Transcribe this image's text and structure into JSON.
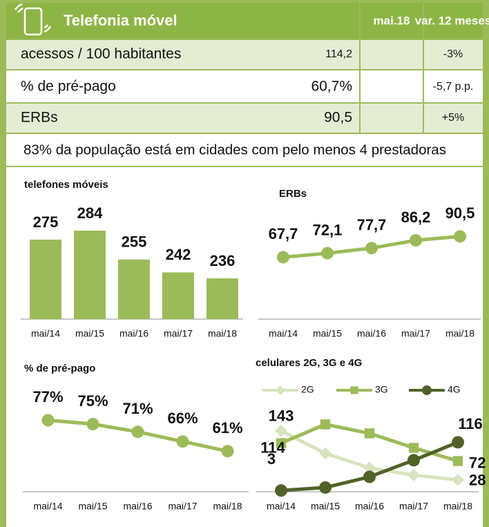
{
  "table": {
    "headers": [
      "Telefonia móvel",
      "mai.18",
      "var. 12 meses"
    ],
    "rows": [
      [
        "acessos / 100 habitantes",
        "114,2",
        "-3%"
      ],
      [
        "% de pré-pago",
        "60,7%",
        "-5,7 p.p."
      ],
      [
        "ERBs",
        "90,5",
        "+5%"
      ]
    ],
    "note": "83% da população está em cidades com pelo menos 4 prestadoras"
  },
  "chart_data": [
    {
      "type": "bar",
      "title": "telefones móveis",
      "categories": [
        "mai/14",
        "mai/15",
        "mai/16",
        "mai/17",
        "mai/18"
      ],
      "values": [
        275,
        284,
        255,
        242,
        236
      ],
      "color": "#9bbb59",
      "ylim": [
        195,
        300
      ]
    },
    {
      "type": "line",
      "title": "ERBs",
      "categories": [
        "mai/14",
        "mai/15",
        "mai/16",
        "mai/17",
        "mai/18"
      ],
      "values": [
        67.7,
        72.1,
        77.7,
        86.2,
        90.5
      ],
      "value_labels": [
        "67,7",
        "72,1",
        "77,7",
        "86,2",
        "90,5"
      ],
      "color": "#9bbb59",
      "ylim": [
        0,
        130
      ]
    },
    {
      "type": "line",
      "title": "% de pré-pago",
      "categories": [
        "mai/14",
        "mai/15",
        "mai/16",
        "mai/17",
        "mai/18"
      ],
      "values": [
        77,
        75,
        71,
        66,
        61
      ],
      "value_labels": [
        "77%",
        "75%",
        "71%",
        "66%",
        "61%"
      ],
      "color": "#9bbb59",
      "ylim": [
        40,
        90
      ]
    },
    {
      "type": "multiline",
      "title": "celulares 2G, 3G e 4G",
      "categories": [
        "mai/14",
        "mai/15",
        "mai/16",
        "mai/17",
        "mai/18"
      ],
      "series": [
        {
          "name": "2G",
          "color": "#d7e4bd",
          "values": [
            143,
            90,
            56,
            39,
            28
          ]
        },
        {
          "name": "3G",
          "color": "#9bbb59",
          "values": [
            114,
            158,
            137,
            103,
            72
          ]
        },
        {
          "name": "4G",
          "color": "#4f6228",
          "values": [
            3,
            10,
            35,
            74,
            116
          ]
        }
      ],
      "ylim": [
        0,
        170
      ]
    }
  ]
}
